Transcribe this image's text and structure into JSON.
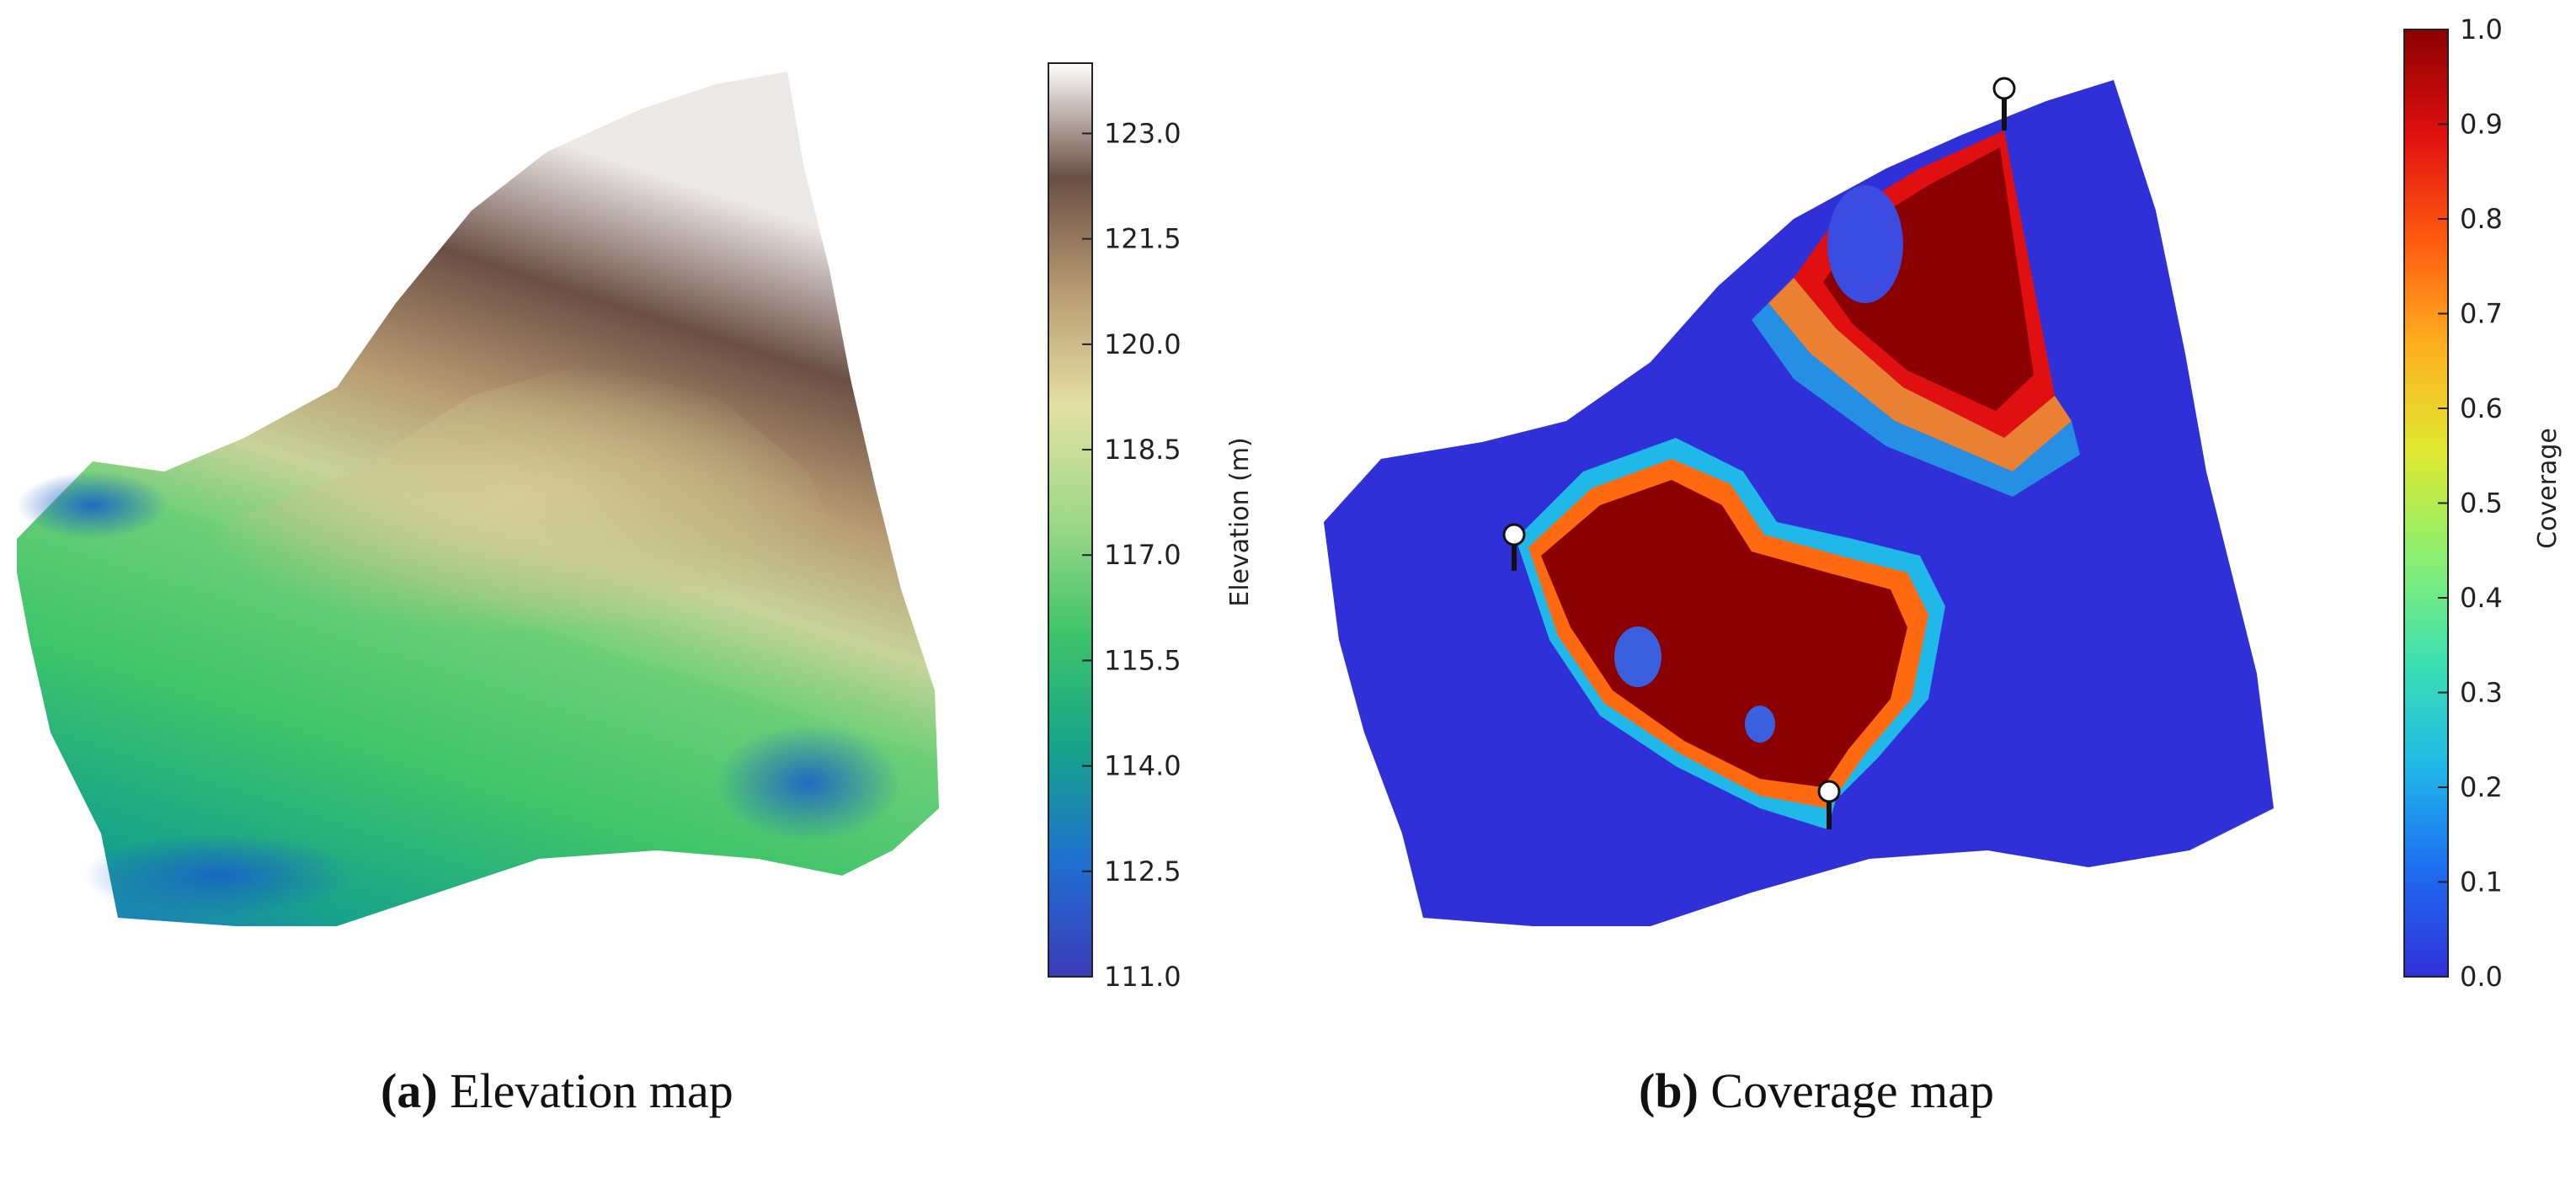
{
  "figure": {
    "panels": [
      {
        "id": "a",
        "caption_label": "(a)",
        "caption_text": "Elevation map"
      },
      {
        "id": "b",
        "caption_label": "(b)",
        "caption_text": "Coverage map"
      }
    ]
  },
  "chart_data": [
    {
      "type": "heatmap",
      "title": "",
      "colorbar": {
        "label": "Elevation (m)",
        "min": 111.0,
        "max": 124.0,
        "ticks": [
          111.0,
          112.5,
          114.0,
          115.5,
          117.0,
          118.5,
          120.0,
          121.5,
          123.0
        ],
        "tick_labels": [
          "111.0",
          "112.5",
          "114.0",
          "115.5",
          "117.0",
          "118.5",
          "120.0",
          "121.5",
          "123.0"
        ],
        "colormap": [
          "#3b3bb8",
          "#1f6fd1",
          "#17a38a",
          "#3ec46a",
          "#9fd888",
          "#e4e0a4",
          "#b89b72",
          "#6b4f45",
          "#ffffff"
        ]
      }
    },
    {
      "type": "heatmap",
      "title": "",
      "colorbar": {
        "label": "Coverage",
        "min": 0.0,
        "max": 1.0,
        "ticks": [
          0.0,
          0.1,
          0.2,
          0.3,
          0.4,
          0.5,
          0.6,
          0.7,
          0.8,
          0.9,
          1.0
        ],
        "tick_labels": [
          "0.0",
          "0.1",
          "0.2",
          "0.3",
          "0.4",
          "0.5",
          "0.6",
          "0.7",
          "0.8",
          "0.9",
          "1.0"
        ],
        "colormap": [
          "#3030d8",
          "#1e6cf0",
          "#20b8e8",
          "#3ee0b0",
          "#8cf070",
          "#e0e830",
          "#ffb020",
          "#ff5a10",
          "#e01010",
          "#8b0000"
        ]
      }
    }
  ]
}
